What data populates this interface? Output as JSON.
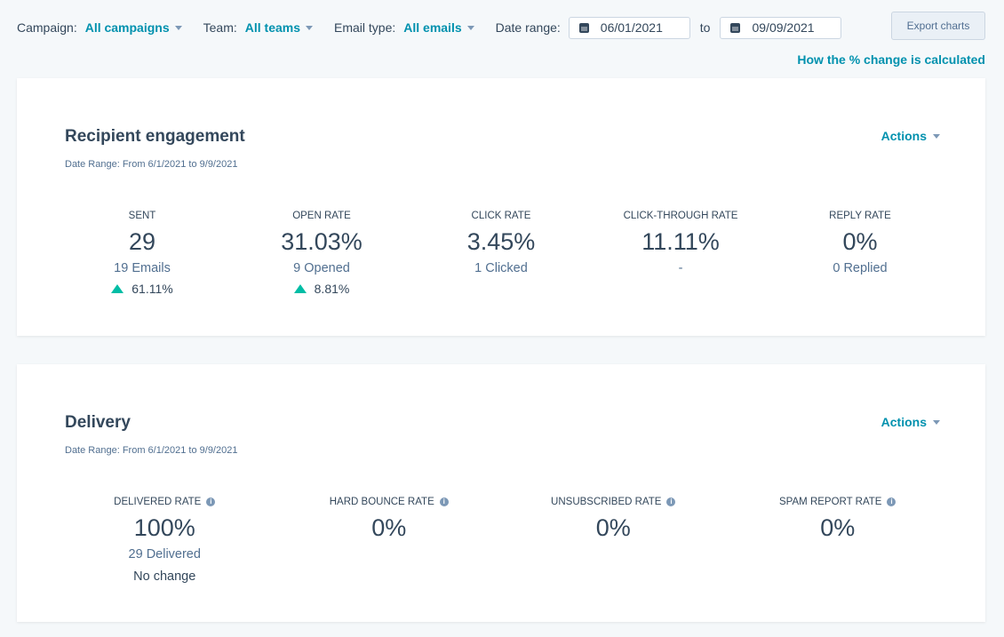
{
  "filters": {
    "campaign": {
      "label": "Campaign:",
      "value": "All campaigns"
    },
    "team": {
      "label": "Team:",
      "value": "All teams"
    },
    "email_type": {
      "label": "Email type:",
      "value": "All emails"
    },
    "date_range": {
      "label": "Date range:",
      "from": "06/01/2021",
      "to_label": "to",
      "to": "09/09/2021"
    }
  },
  "export_label": "Export charts",
  "change_link": "How the % change is calculated",
  "colors": {
    "accent": "#0091ae",
    "increase": "#00bda5",
    "text": "#33475b"
  },
  "engagement": {
    "title": "Recipient engagement",
    "range": "Date Range: From 6/1/2021 to 9/9/2021",
    "actions": "Actions",
    "metrics": [
      {
        "label": "SENT",
        "value": "29",
        "sub": "19 Emails",
        "change": "61.11%",
        "direction": "up"
      },
      {
        "label": "OPEN RATE",
        "value": "31.03%",
        "sub": "9 Opened",
        "change": "8.81%",
        "direction": "up"
      },
      {
        "label": "CLICK RATE",
        "value": "3.45%",
        "sub": "1 Clicked"
      },
      {
        "label": "CLICK-THROUGH RATE",
        "value": "11.11%",
        "sub": "-"
      },
      {
        "label": "REPLY RATE",
        "value": "0%",
        "sub": "0 Replied"
      }
    ]
  },
  "delivery": {
    "title": "Delivery",
    "range": "Date Range: From 6/1/2021 to 9/9/2021",
    "actions": "Actions",
    "metrics": [
      {
        "label": "DELIVERED RATE",
        "value": "100%",
        "sub": "29 Delivered",
        "change": "No change"
      },
      {
        "label": "HARD BOUNCE RATE",
        "value": "0%"
      },
      {
        "label": "UNSUBSCRIBED RATE",
        "value": "0%"
      },
      {
        "label": "SPAM REPORT RATE",
        "value": "0%"
      }
    ]
  }
}
